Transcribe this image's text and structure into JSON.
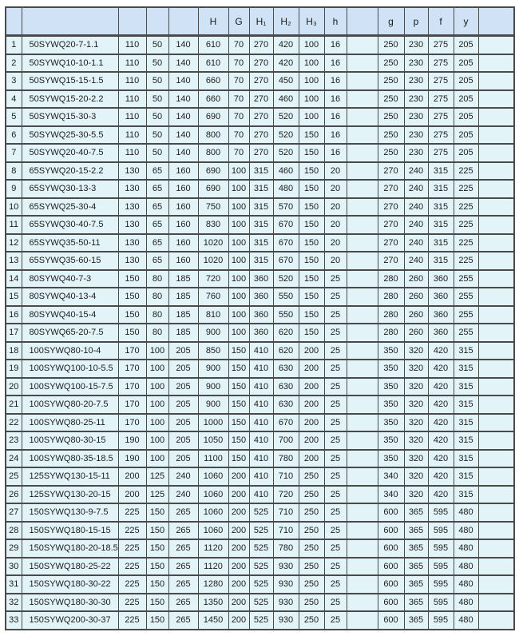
{
  "page": {
    "background": "#ffffff"
  },
  "table": {
    "colors": {
      "header_bg": "#cfe2f6",
      "row_bg": "#e2f4f8",
      "border": "#4a4a4a",
      "text": "#1c1c1c"
    },
    "headers": [
      "",
      "",
      "",
      "",
      "",
      "H",
      "G",
      "H₁",
      "H₂",
      "H₃",
      "h",
      "",
      "g",
      "p",
      "f",
      "y",
      ""
    ],
    "rows": [
      [
        "1",
        "50SYWQ20-7-1.1",
        "110",
        "50",
        "140",
        "610",
        "70",
        "270",
        "420",
        "100",
        "16",
        "",
        "250",
        "230",
        "275",
        "205",
        ""
      ],
      [
        "2",
        "50SYWQ10-10-1.1",
        "110",
        "50",
        "140",
        "610",
        "70",
        "270",
        "420",
        "100",
        "16",
        "",
        "250",
        "230",
        "275",
        "205",
        ""
      ],
      [
        "3",
        "50SYWQ15-15-1.5",
        "110",
        "50",
        "140",
        "660",
        "70",
        "270",
        "450",
        "100",
        "16",
        "",
        "250",
        "230",
        "275",
        "205",
        ""
      ],
      [
        "4",
        "50SYWQ15-20-2.2",
        "110",
        "50",
        "140",
        "660",
        "70",
        "270",
        "460",
        "100",
        "16",
        "",
        "250",
        "230",
        "275",
        "205",
        ""
      ],
      [
        "5",
        "50SYWQ15-30-3",
        "110",
        "50",
        "140",
        "690",
        "70",
        "270",
        "520",
        "100",
        "16",
        "",
        "250",
        "230",
        "275",
        "205",
        ""
      ],
      [
        "6",
        "50SYWQ25-30-5.5",
        "110",
        "50",
        "140",
        "800",
        "70",
        "270",
        "520",
        "150",
        "16",
        "",
        "250",
        "230",
        "275",
        "205",
        ""
      ],
      [
        "7",
        "50SYWQ20-40-7.5",
        "110",
        "50",
        "140",
        "800",
        "70",
        "270",
        "520",
        "150",
        "16",
        "",
        "250",
        "230",
        "275",
        "205",
        ""
      ],
      [
        "8",
        "65SYWQ20-15-2.2",
        "130",
        "65",
        "160",
        "690",
        "100",
        "315",
        "460",
        "150",
        "20",
        "",
        "270",
        "240",
        "315",
        "225",
        ""
      ],
      [
        "9",
        "65SYWQ30-13-3",
        "130",
        "65",
        "160",
        "690",
        "100",
        "315",
        "480",
        "150",
        "20",
        "",
        "270",
        "240",
        "315",
        "225",
        ""
      ],
      [
        "10",
        "65SYWQ25-30-4",
        "130",
        "65",
        "160",
        "750",
        "100",
        "315",
        "570",
        "150",
        "20",
        "",
        "270",
        "240",
        "315",
        "225",
        ""
      ],
      [
        "11",
        "65SYWQ30-40-7.5",
        "130",
        "65",
        "160",
        "830",
        "100",
        "315",
        "670",
        "150",
        "20",
        "",
        "270",
        "240",
        "315",
        "225",
        ""
      ],
      [
        "12",
        "65SYWQ35-50-11",
        "130",
        "65",
        "160",
        "1020",
        "100",
        "315",
        "670",
        "150",
        "20",
        "",
        "270",
        "240",
        "315",
        "225",
        ""
      ],
      [
        "13",
        "65SYWQ35-60-15",
        "130",
        "65",
        "160",
        "1020",
        "100",
        "315",
        "670",
        "150",
        "20",
        "",
        "270",
        "240",
        "315",
        "225",
        ""
      ],
      [
        "14",
        "80SYWQ40-7-3",
        "150",
        "80",
        "185",
        "720",
        "100",
        "360",
        "520",
        "150",
        "25",
        "",
        "280",
        "260",
        "360",
        "255",
        ""
      ],
      [
        "15",
        "80SYWQ40-13-4",
        "150",
        "80",
        "185",
        "760",
        "100",
        "360",
        "550",
        "150",
        "25",
        "",
        "280",
        "260",
        "360",
        "255",
        ""
      ],
      [
        "16",
        "80SYWQ40-15-4",
        "150",
        "80",
        "185",
        "810",
        "100",
        "360",
        "550",
        "150",
        "25",
        "",
        "280",
        "260",
        "360",
        "255",
        ""
      ],
      [
        "17",
        "80SYWQ65-20-7.5",
        "150",
        "80",
        "185",
        "900",
        "100",
        "360",
        "620",
        "150",
        "25",
        "",
        "280",
        "260",
        "360",
        "255",
        ""
      ],
      [
        "18",
        "100SYWQ80-10-4",
        "170",
        "100",
        "205",
        "850",
        "150",
        "410",
        "620",
        "200",
        "25",
        "",
        "350",
        "320",
        "420",
        "315",
        ""
      ],
      [
        "19",
        "100SYWQ100-10-5.5",
        "170",
        "100",
        "205",
        "900",
        "150",
        "410",
        "630",
        "200",
        "25",
        "",
        "350",
        "320",
        "420",
        "315",
        ""
      ],
      [
        "20",
        "100SYWQ100-15-7.5",
        "170",
        "100",
        "205",
        "900",
        "150",
        "410",
        "630",
        "200",
        "25",
        "",
        "350",
        "320",
        "420",
        "315",
        ""
      ],
      [
        "21",
        "100SYWQ80-20-7.5",
        "170",
        "100",
        "205",
        "900",
        "150",
        "410",
        "630",
        "200",
        "25",
        "",
        "350",
        "320",
        "420",
        "315",
        ""
      ],
      [
        "22",
        "100SYWQ80-25-11",
        "170",
        "100",
        "205",
        "1000",
        "150",
        "410",
        "670",
        "200",
        "25",
        "",
        "350",
        "320",
        "420",
        "315",
        ""
      ],
      [
        "23",
        "100SYWQ80-30-15",
        "190",
        "100",
        "205",
        "1050",
        "150",
        "410",
        "700",
        "200",
        "25",
        "",
        "350",
        "320",
        "420",
        "315",
        ""
      ],
      [
        "24",
        "100SYWQ80-35-18.5",
        "190",
        "100",
        "205",
        "1100",
        "150",
        "410",
        "780",
        "200",
        "25",
        "",
        "350",
        "320",
        "420",
        "315",
        ""
      ],
      [
        "25",
        "125SYWQ130-15-11",
        "200",
        "125",
        "240",
        "1060",
        "200",
        "410",
        "710",
        "250",
        "25",
        "",
        "340",
        "320",
        "420",
        "315",
        ""
      ],
      [
        "26",
        "125SYWQ130-20-15",
        "200",
        "125",
        "240",
        "1060",
        "200",
        "410",
        "720",
        "250",
        "25",
        "",
        "340",
        "320",
        "420",
        "315",
        ""
      ],
      [
        "27",
        "150SYWQ130-9-7.5",
        "225",
        "150",
        "265",
        "1060",
        "200",
        "525",
        "710",
        "250",
        "25",
        "",
        "600",
        "365",
        "595",
        "480",
        ""
      ],
      [
        "28",
        "150SYWQ180-15-15",
        "225",
        "150",
        "265",
        "1060",
        "200",
        "525",
        "710",
        "250",
        "25",
        "",
        "600",
        "365",
        "595",
        "480",
        ""
      ],
      [
        "29",
        "150SYWQ180-20-18.5",
        "225",
        "150",
        "265",
        "1120",
        "200",
        "525",
        "780",
        "250",
        "25",
        "",
        "600",
        "365",
        "595",
        "480",
        ""
      ],
      [
        "30",
        "150SYWQ180-25-22",
        "225",
        "150",
        "265",
        "1120",
        "200",
        "525",
        "930",
        "250",
        "25",
        "",
        "600",
        "365",
        "595",
        "480",
        ""
      ],
      [
        "31",
        "150SYWQ180-30-22",
        "225",
        "150",
        "265",
        "1280",
        "200",
        "525",
        "930",
        "250",
        "25",
        "",
        "600",
        "365",
        "595",
        "480",
        ""
      ],
      [
        "32",
        "150SYWQ180-30-30",
        "225",
        "150",
        "265",
        "1350",
        "200",
        "525",
        "930",
        "250",
        "25",
        "",
        "600",
        "365",
        "595",
        "480",
        ""
      ],
      [
        "33",
        "150SYWQ200-30-37",
        "225",
        "150",
        "265",
        "1450",
        "200",
        "525",
        "930",
        "250",
        "25",
        "",
        "600",
        "365",
        "595",
        "480",
        ""
      ]
    ]
  }
}
